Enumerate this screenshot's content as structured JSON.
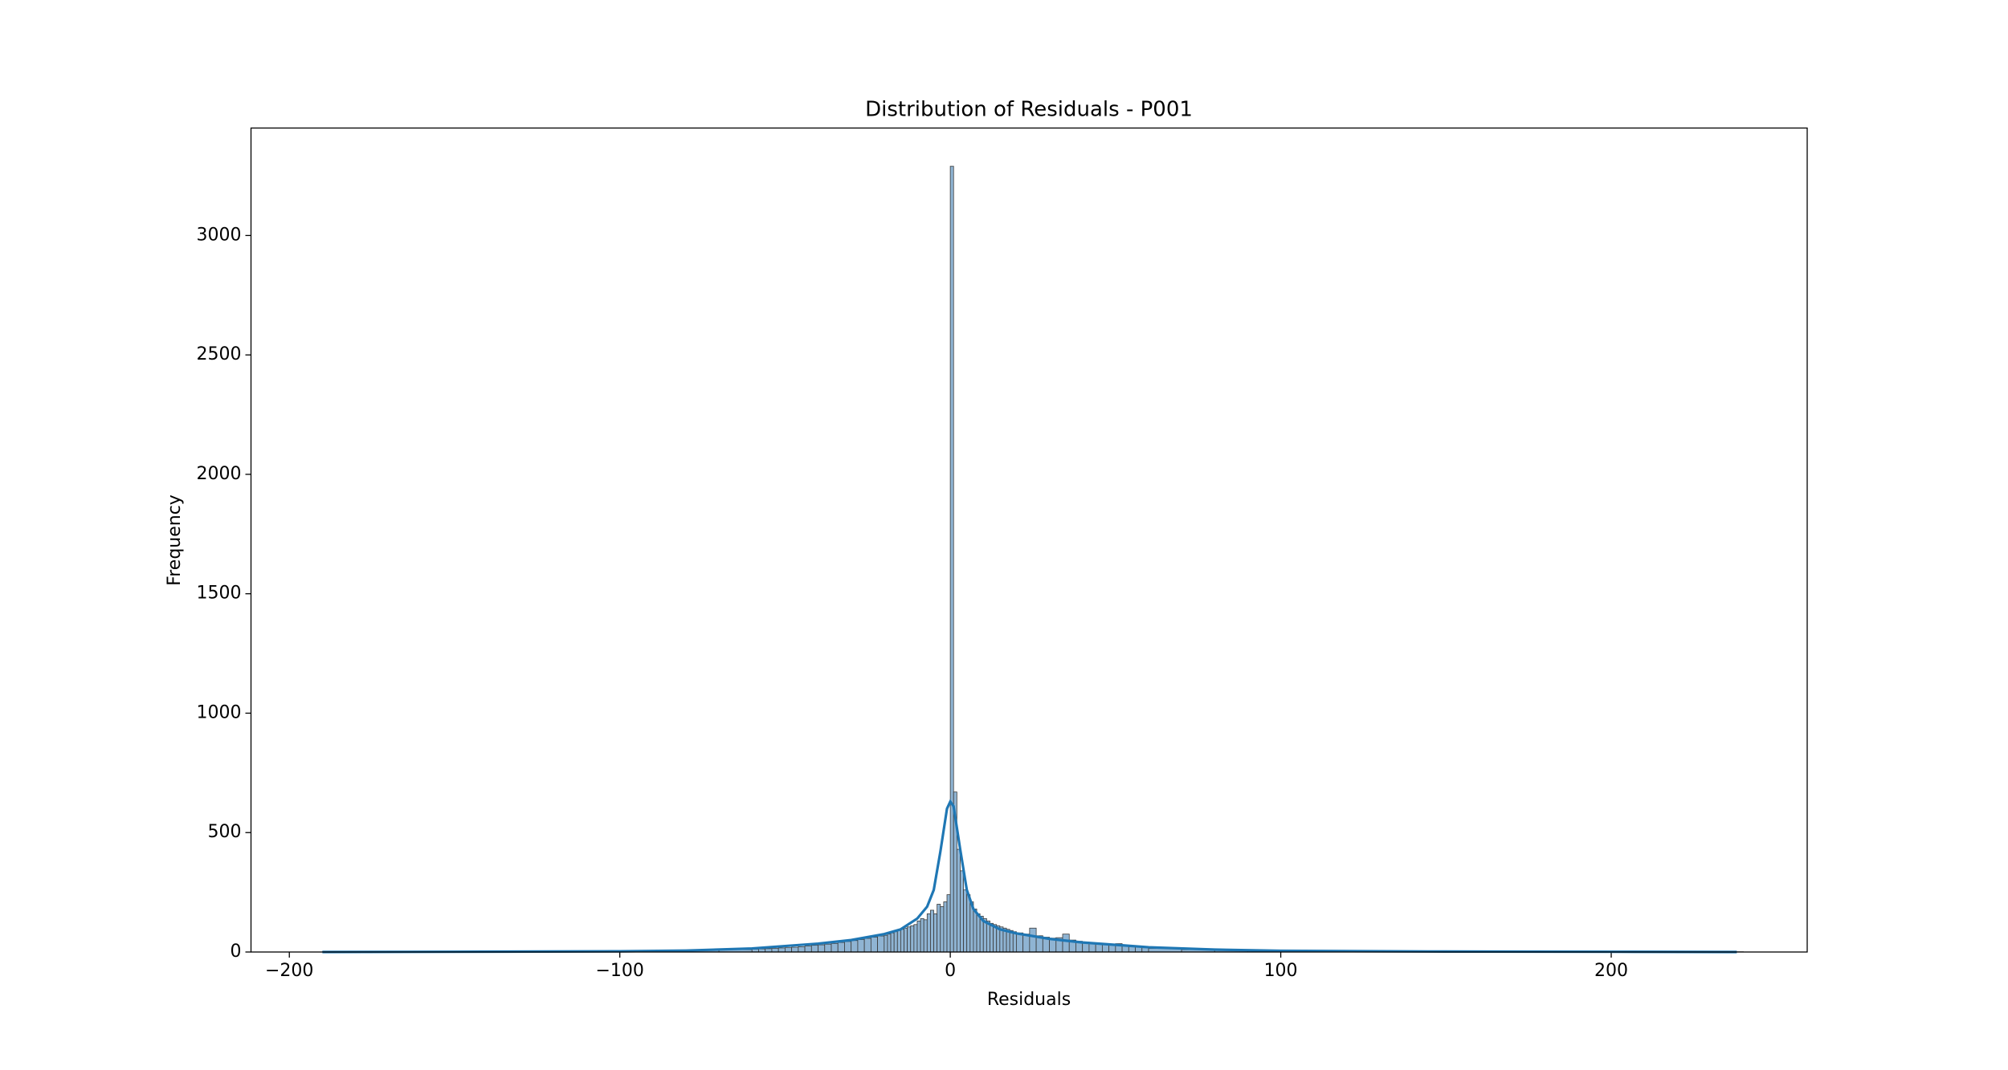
{
  "chart_data": {
    "type": "histogram",
    "title": "Distribution of Residuals - P001",
    "xlabel": "Residuals",
    "ylabel": "Frequency",
    "bins": [
      -190,
      -180,
      -170,
      -160,
      -150,
      -140,
      -130,
      -120,
      -110,
      -100,
      -90,
      -80,
      -70,
      -60,
      -58,
      -56,
      -54,
      -52,
      -50,
      -48,
      -46,
      -44,
      -42,
      -40,
      -38,
      -36,
      -34,
      -32,
      -30,
      -28,
      -26,
      -24,
      -22,
      -20,
      -19,
      -18,
      -17,
      -16,
      -15,
      -14,
      -13,
      -12,
      -11,
      -10,
      -9,
      -8,
      -7,
      -6,
      -5,
      -4,
      -3,
      -2,
      -1,
      0,
      1,
      2,
      3,
      4,
      5,
      6,
      7,
      8,
      9,
      10,
      11,
      12,
      13,
      14,
      15,
      16,
      17,
      18,
      19,
      20,
      22,
      24,
      26,
      28,
      30,
      32,
      34,
      36,
      38,
      40,
      42,
      44,
      46,
      48,
      50,
      52,
      54,
      56,
      58,
      60,
      70,
      80,
      90,
      100,
      110,
      120,
      130,
      140,
      150,
      160,
      170,
      180,
      190,
      200,
      210,
      220,
      230,
      240
    ],
    "values": [
      1,
      1,
      1,
      2,
      2,
      2,
      3,
      3,
      4,
      5,
      6,
      8,
      10,
      12,
      13,
      14,
      15,
      17,
      18,
      20,
      22,
      25,
      28,
      30,
      33,
      36,
      40,
      44,
      48,
      52,
      57,
      62,
      67,
      70,
      75,
      80,
      85,
      90,
      95,
      100,
      105,
      110,
      115,
      130,
      140,
      135,
      160,
      175,
      160,
      200,
      190,
      210,
      240,
      3290,
      670,
      430,
      340,
      260,
      240,
      210,
      180,
      160,
      150,
      140,
      130,
      120,
      115,
      110,
      105,
      100,
      95,
      90,
      85,
      80,
      75,
      100,
      68,
      62,
      58,
      60,
      75,
      50,
      45,
      42,
      38,
      35,
      32,
      30,
      35,
      25,
      22,
      20,
      18,
      15,
      10,
      7,
      5,
      4,
      3,
      3,
      2,
      2,
      2,
      1,
      1,
      1,
      1,
      1,
      1,
      1,
      1
    ],
    "color": "#8fb4d3",
    "edgecolor": "#3a3a3a",
    "kde": {
      "color": "#1f77b4",
      "x": [
        -190,
        -150,
        -100,
        -80,
        -60,
        -40,
        -30,
        -20,
        -15,
        -10,
        -7,
        -5,
        -3,
        -1,
        0,
        1,
        3,
        5,
        7,
        10,
        15,
        20,
        30,
        40,
        60,
        80,
        100,
        150,
        200,
        238
      ],
      "y": [
        0,
        1,
        3,
        6,
        15,
        35,
        50,
        75,
        95,
        140,
        190,
        260,
        420,
        600,
        630,
        610,
        430,
        260,
        180,
        130,
        95,
        78,
        55,
        40,
        20,
        10,
        5,
        2,
        1,
        0
      ]
    },
    "xlim": [
      -211.6,
      259.3
    ],
    "ylim": [
      0,
      3450
    ],
    "xticks": [
      {
        "value": -200,
        "label": "−200"
      },
      {
        "value": -100,
        "label": "−100"
      },
      0,
      100,
      200
    ],
    "yticks": [
      0,
      500,
      1000,
      1500,
      2000,
      2500,
      3000
    ]
  }
}
